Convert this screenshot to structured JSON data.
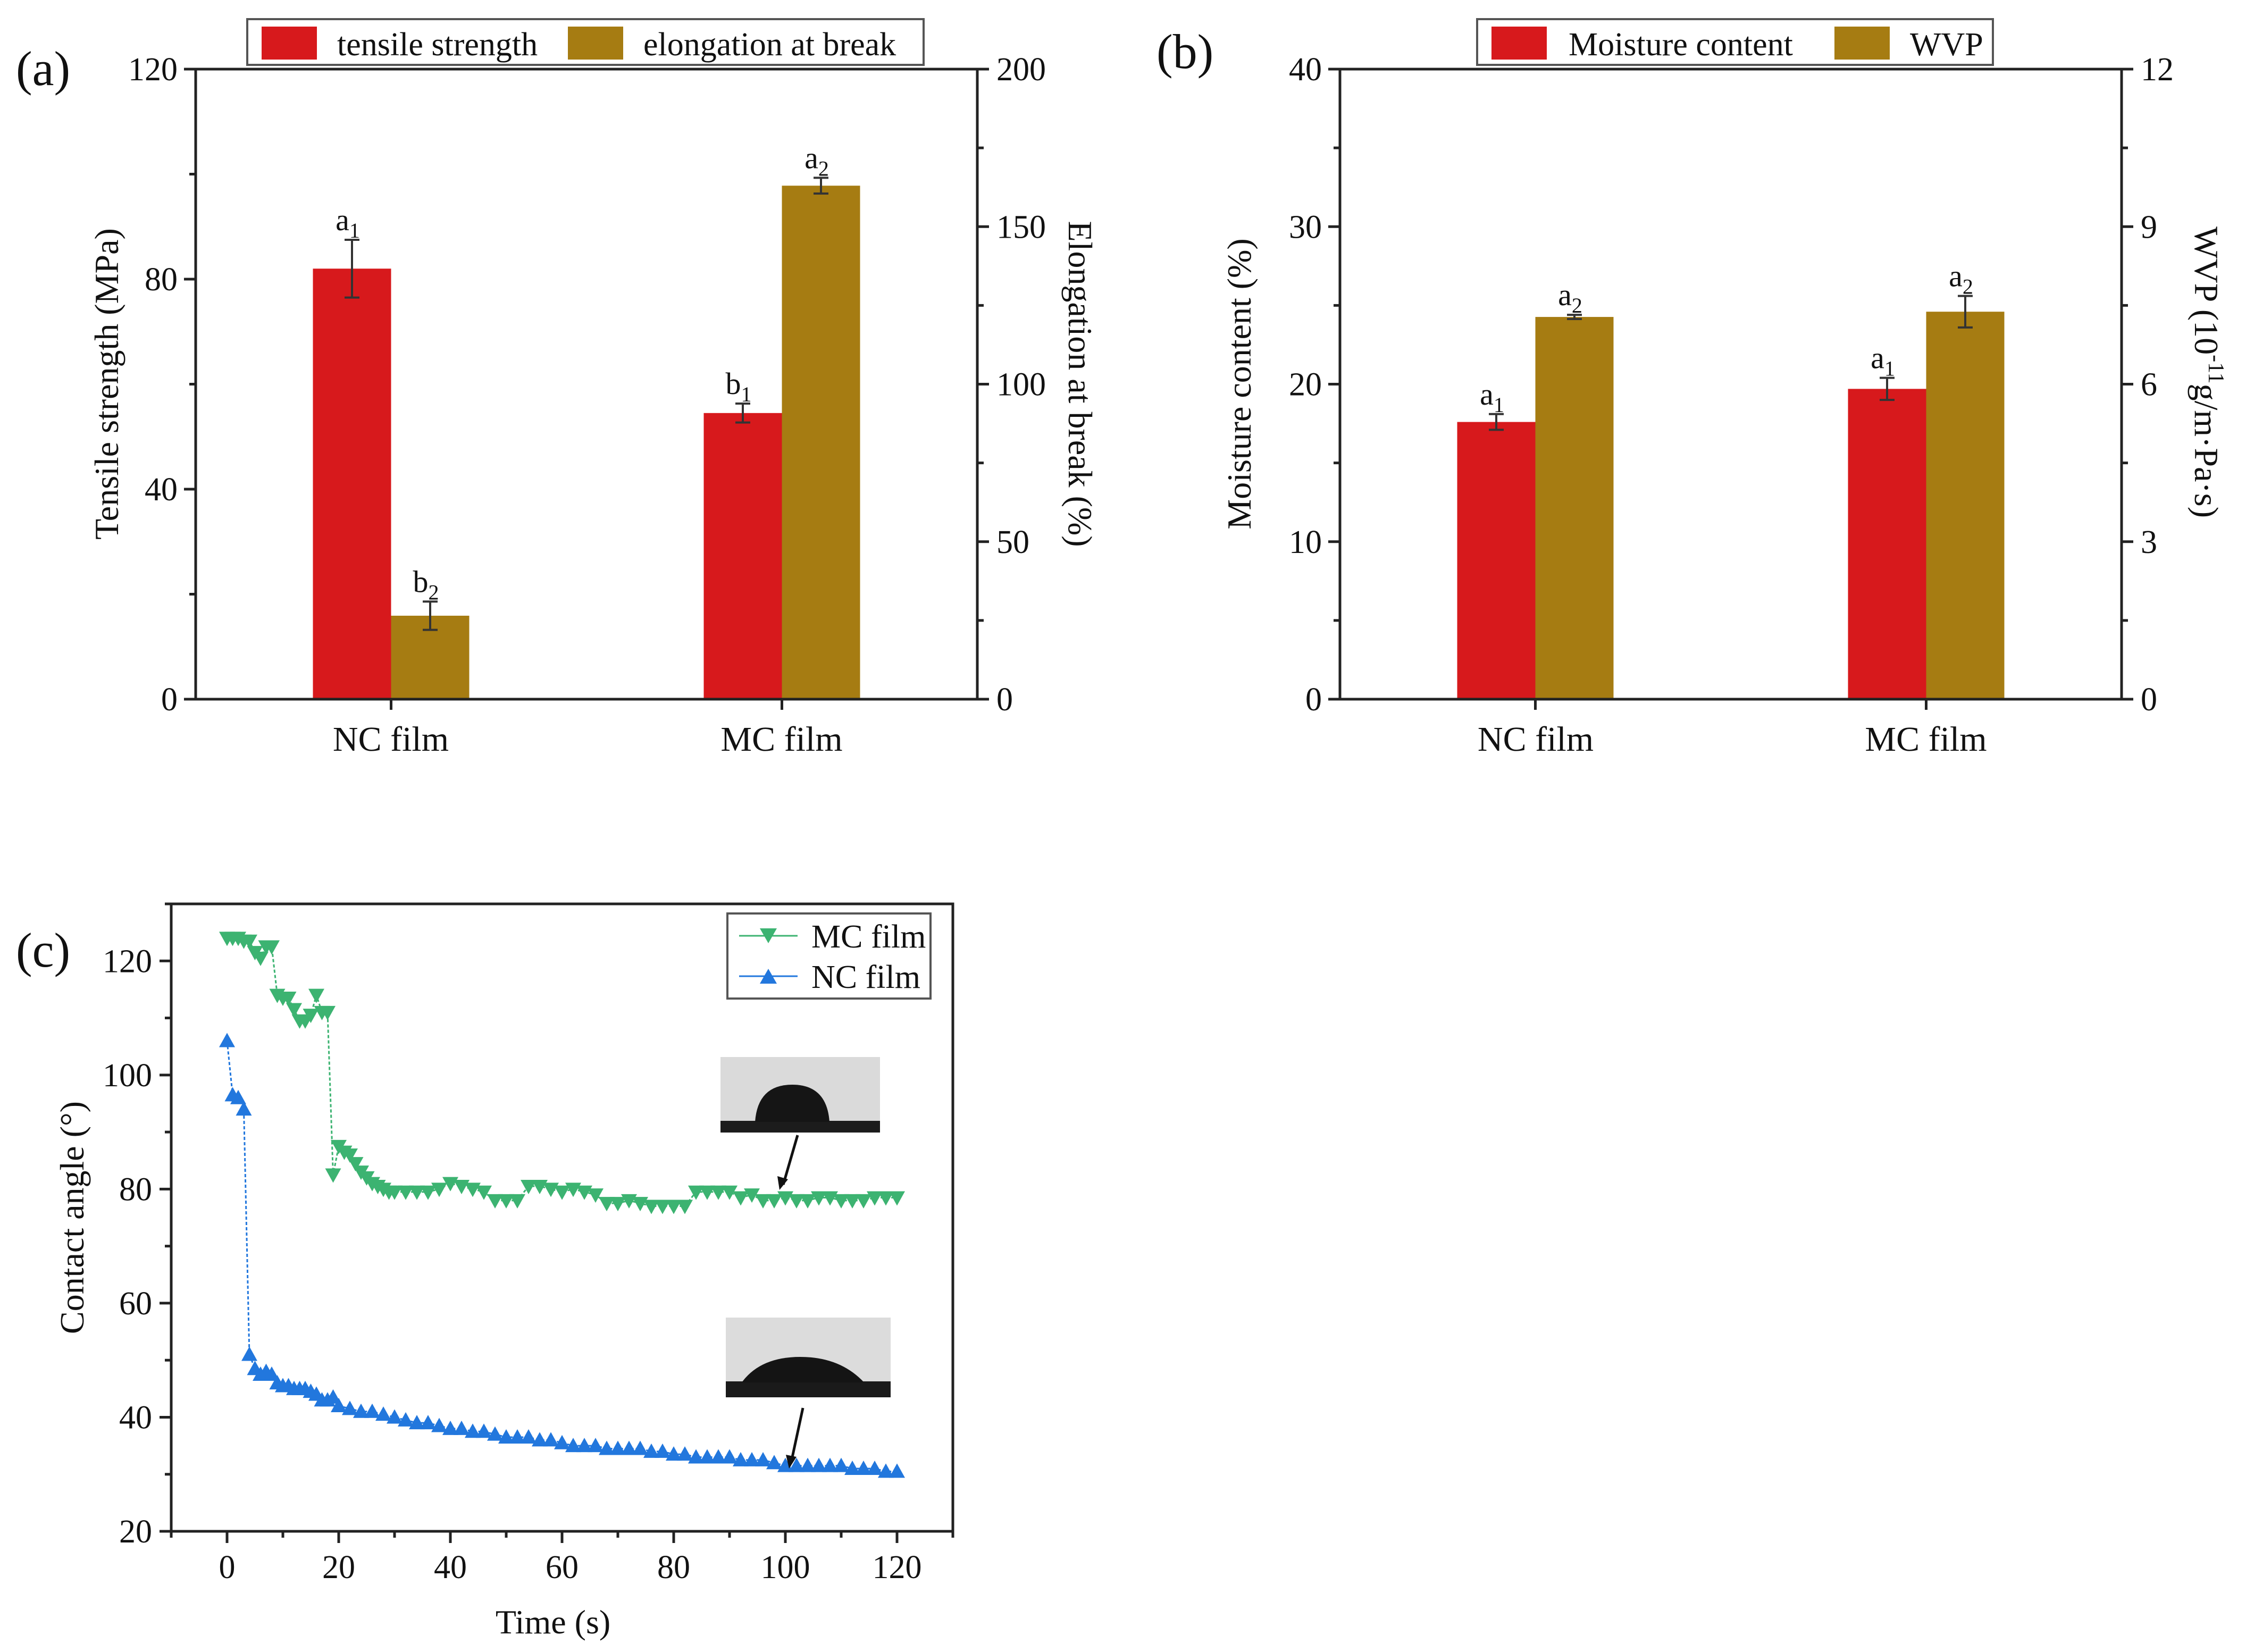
{
  "chart_data": [
    {
      "panel": "(a)",
      "type": "bar",
      "categories": [
        "NC film",
        "MC film"
      ],
      "series": [
        {
          "name": "tensile strength",
          "axis": "left",
          "color": "#d7191c",
          "values": [
            82,
            54.5
          ],
          "errors": [
            5.5,
            1.8
          ],
          "labels": [
            {
              "base": "a",
              "sub": "1"
            },
            {
              "base": "b",
              "sub": "1"
            }
          ]
        },
        {
          "name": "elongation at break",
          "axis": "right",
          "color": "#a67c12",
          "values": [
            26.5,
            163
          ],
          "errors": [
            4.5,
            2.5
          ],
          "labels": [
            {
              "base": "b",
              "sub": "2"
            },
            {
              "base": "a",
              "sub": "2"
            }
          ]
        }
      ],
      "ylabel": "Tensile strength (MPa)",
      "ylim": [
        0,
        120
      ],
      "yticks": [
        "0",
        "40",
        "80",
        "120"
      ],
      "y2label": "Elongation at break (%)",
      "y2lim": [
        0,
        200
      ],
      "y2ticks": [
        "0",
        "50",
        "100",
        "150",
        "200"
      ],
      "legend": "top"
    },
    {
      "panel": "(b)",
      "type": "bar",
      "categories": [
        "NC film",
        "MC film"
      ],
      "series": [
        {
          "name": "Moisture content",
          "axis": "left",
          "color": "#d7191c",
          "values": [
            17.6,
            19.7
          ],
          "errors": [
            0.5,
            0.7
          ],
          "labels": [
            {
              "base": "a",
              "sub": "1"
            },
            {
              "base": "a",
              "sub": "1"
            }
          ]
        },
        {
          "name": "WVP",
          "axis": "right",
          "color": "#a67c12",
          "values": [
            7.28,
            7.38
          ],
          "errors": [
            0.04,
            0.3
          ],
          "labels": [
            {
              "base": "a",
              "sub": "2"
            },
            {
              "base": "a",
              "sub": "2"
            }
          ]
        }
      ],
      "ylabel": "Moisture content (%)",
      "ylim": [
        0,
        40
      ],
      "yticks": [
        "0",
        "10",
        "20",
        "30",
        "40"
      ],
      "y2label_main": "WVP (10",
      "y2label_sup": "-11",
      "y2label_end": "g/m·Pa·s)",
      "y2lim": [
        0,
        12
      ],
      "y2ticks": [
        "0",
        "3",
        "6",
        "9",
        "12"
      ],
      "legend": "top"
    },
    {
      "panel": "(c)",
      "type": "scatter",
      "xlabel": "Time (s)",
      "ylabel": "Contact angle (°)",
      "xlim": [
        -10,
        130
      ],
      "ylim": [
        20,
        130
      ],
      "xticks": [
        "0",
        "20",
        "40",
        "60",
        "80",
        "100",
        "120"
      ],
      "yticks": [
        "20",
        "40",
        "60",
        "80",
        "100",
        "120"
      ],
      "legend": "top-right",
      "series": [
        {
          "name": "MC film",
          "marker": "triangle-down",
          "color": "#3cb371",
          "x": [
            0,
            1,
            2,
            3,
            4,
            5,
            6,
            7,
            8,
            9,
            10,
            11,
            12,
            13,
            14,
            15,
            16,
            17,
            18,
            19,
            20,
            21,
            22,
            23,
            24,
            25,
            26,
            27,
            28,
            29,
            30,
            32,
            34,
            36,
            38,
            40,
            42,
            44,
            46,
            48,
            50,
            52,
            54,
            56,
            58,
            60,
            62,
            64,
            66,
            68,
            70,
            72,
            74,
            76,
            78,
            80,
            82,
            84,
            86,
            88,
            90,
            92,
            94,
            96,
            98,
            100,
            102,
            104,
            106,
            108,
            110,
            112,
            114,
            116,
            118,
            120
          ],
          "y": [
            124,
            124,
            124,
            123.5,
            123.5,
            121.5,
            120.5,
            122.5,
            122.5,
            114,
            113.5,
            113.5,
            111.5,
            109.5,
            109.5,
            110.5,
            114,
            111,
            111,
            82.5,
            87.5,
            86.5,
            86,
            84.5,
            83,
            82,
            81,
            80.5,
            80,
            79.5,
            79.5,
            79.5,
            79.5,
            79.5,
            80,
            81,
            80.5,
            80,
            79.5,
            78,
            78,
            78,
            80.5,
            80.5,
            80,
            79.5,
            80,
            79.5,
            79,
            77.5,
            77.5,
            78,
            77.5,
            77,
            77,
            77,
            77,
            79.5,
            79.5,
            79.5,
            79.5,
            78.5,
            79,
            78,
            78,
            78.5,
            78,
            78,
            78.5,
            78.5,
            78,
            78,
            78,
            78.5,
            78.5,
            78.5
          ]
        },
        {
          "name": "NC film",
          "marker": "triangle-up",
          "color": "#2277dd",
          "x": [
            0,
            1,
            2,
            3,
            4,
            5,
            6,
            7,
            8,
            9,
            10,
            11,
            12,
            13,
            14,
            15,
            16,
            17,
            18,
            19,
            20,
            22,
            24,
            26,
            28,
            30,
            32,
            34,
            36,
            38,
            40,
            42,
            44,
            46,
            48,
            50,
            52,
            54,
            56,
            58,
            60,
            62,
            64,
            66,
            68,
            70,
            72,
            74,
            76,
            78,
            80,
            82,
            84,
            86,
            88,
            90,
            92,
            94,
            96,
            98,
            100,
            102,
            104,
            106,
            108,
            110,
            112,
            114,
            116,
            118,
            120
          ],
          "y": [
            106,
            96.5,
            96,
            94,
            51,
            48.5,
            47.5,
            48,
            47.5,
            46,
            45.5,
            45.5,
            45,
            45,
            45,
            44.5,
            44,
            43,
            43,
            43.5,
            42,
            41.5,
            41,
            41,
            40.5,
            40,
            39.5,
            39,
            39,
            38.5,
            38,
            38,
            37.5,
            37.5,
            37,
            36.5,
            36.5,
            36.5,
            36,
            36,
            35.5,
            35,
            35,
            35,
            34.5,
            34.5,
            34.5,
            34.5,
            34,
            34,
            33.5,
            33.5,
            33,
            33,
            33,
            33,
            32.5,
            32.5,
            32.5,
            32,
            31.5,
            31.5,
            31.5,
            31.5,
            31.5,
            31.5,
            31,
            31,
            31,
            30.5,
            30.5
          ]
        }
      ]
    }
  ]
}
